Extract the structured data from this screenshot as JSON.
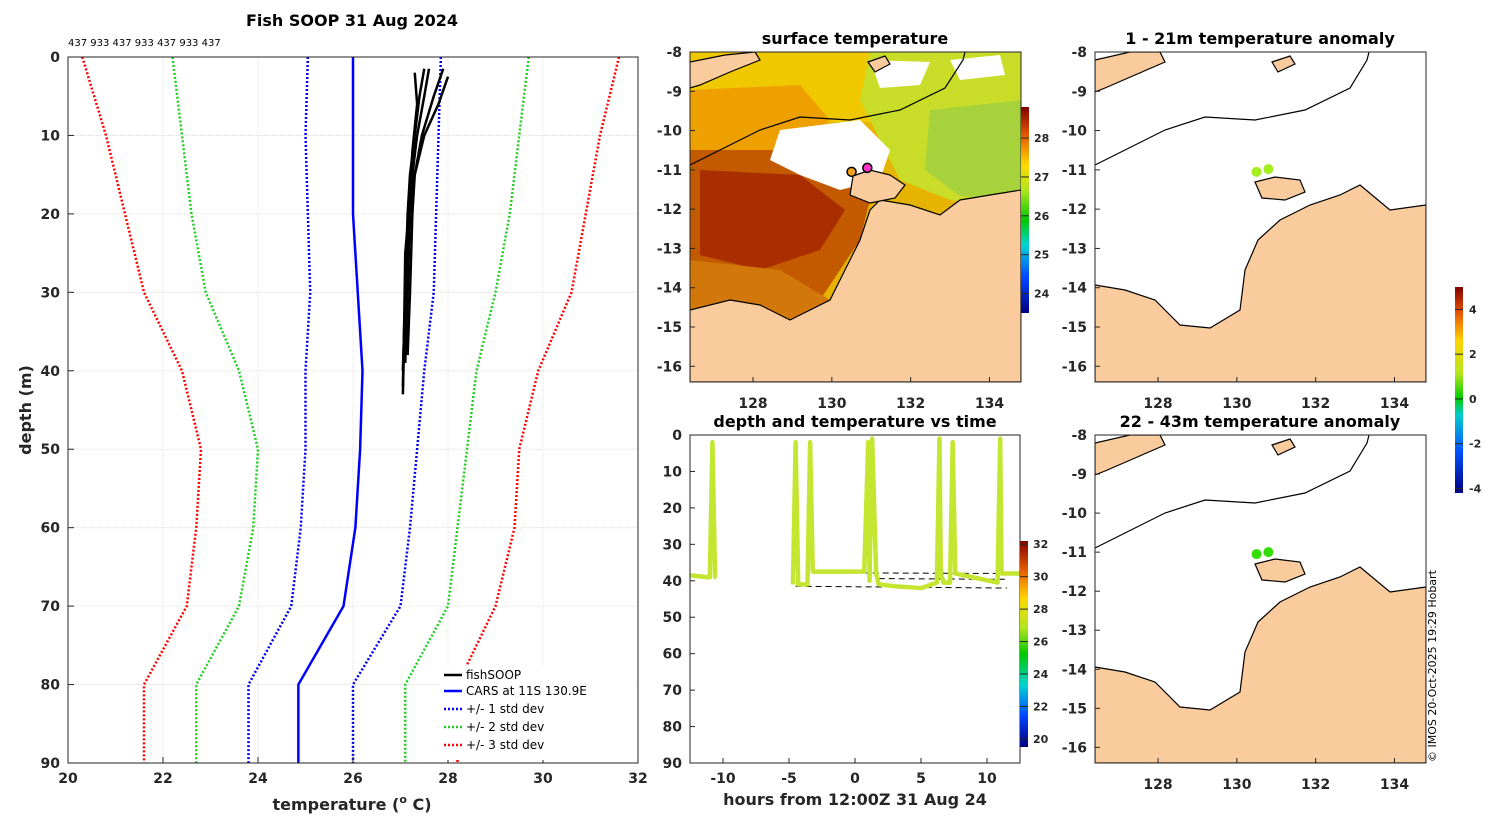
{
  "chart_data": [
    {
      "type": "line",
      "title": "Fish SOOP 31 Aug 2024",
      "id_row": "437 933 437 933 437 933 437",
      "xlabel": "temperature (",
      "xlabel_sup": "o",
      "xlabel_end": " C)",
      "ylabel": "depth (m)",
      "xlim": [
        20,
        32
      ],
      "ylim": [
        0,
        90
      ],
      "xticks": [
        20,
        22,
        24,
        26,
        28,
        30,
        32
      ],
      "yticks": [
        0,
        10,
        20,
        30,
        40,
        50,
        60,
        70,
        80,
        90
      ],
      "depths": [
        0,
        10,
        20,
        30,
        40,
        50,
        60,
        70,
        80,
        90
      ],
      "series": [
        {
          "name": "CARS at 11S 130.9E",
          "color": "#0000ff",
          "style": "solid",
          "values": [
            26.0,
            26.0,
            26.0,
            26.1,
            26.2,
            26.15,
            26.05,
            25.8,
            24.85,
            24.85
          ]
        },
        {
          "name": "+/- 1 std dev",
          "color": "#0000ee",
          "style": "dotted",
          "values": [
            25.05,
            25.0,
            25.05,
            25.1,
            25.0,
            25.0,
            24.9,
            24.7,
            23.8,
            23.8
          ]
        },
        {
          "name": "+/- 1 std dev (upper)",
          "color": "#0000ee",
          "style": "dotted",
          "legend": false,
          "values": [
            27.85,
            27.8,
            27.75,
            27.7,
            27.5,
            27.35,
            27.2,
            27.0,
            26.0,
            26.0
          ]
        },
        {
          "name": "+/- 2 std dev",
          "color": "#22cc22",
          "style": "dotted",
          "values": [
            22.2,
            22.4,
            22.6,
            22.9,
            23.6,
            24.0,
            23.9,
            23.6,
            22.7,
            22.7
          ]
        },
        {
          "name": "+/- 2 std dev (upper)",
          "color": "#22cc22",
          "style": "dotted",
          "legend": false,
          "values": [
            29.7,
            29.5,
            29.3,
            29.0,
            28.6,
            28.4,
            28.2,
            28.0,
            27.1,
            27.1
          ]
        },
        {
          "name": "+/- 3 std dev",
          "color": "#ff0000",
          "style": "dotted",
          "values": [
            20.3,
            20.8,
            21.2,
            21.6,
            22.4,
            22.8,
            22.7,
            22.5,
            21.6,
            21.6
          ]
        },
        {
          "name": "+/- 3 std dev (upper)",
          "color": "#ff0000",
          "style": "dotted",
          "legend": false,
          "values": [
            31.6,
            31.2,
            30.9,
            30.6,
            29.9,
            29.5,
            29.4,
            29.0,
            28.2,
            28.2
          ]
        }
      ],
      "fishsoop": {
        "name": "fishSOOP",
        "color": "#000000",
        "profiles": [
          {
            "depths": [
              1.5,
              5,
              10,
              15,
              20,
              30,
              43
            ],
            "values": [
              27.5,
              27.4,
              27.3,
              27.2,
              27.15,
              27.1,
              27.05
            ]
          },
          {
            "depths": [
              1.5,
              5,
              10,
              15,
              20,
              30,
              39
            ],
            "values": [
              27.9,
              27.7,
              27.45,
              27.3,
              27.2,
              27.15,
              27.1
            ]
          },
          {
            "depths": [
              2.5,
              6,
              10,
              15,
              20,
              30,
              38
            ],
            "values": [
              28.0,
              27.8,
              27.5,
              27.3,
              27.25,
              27.2,
              27.15
            ]
          },
          {
            "depths": [
              1.5,
              5,
              10,
              15,
              22,
              30,
              40
            ],
            "values": [
              27.6,
              27.5,
              27.35,
              27.25,
              27.15,
              27.1,
              27.05
            ]
          },
          {
            "depths": [
              2,
              6,
              12,
              18,
              25,
              33,
              42
            ],
            "values": [
              27.3,
              27.35,
              27.25,
              27.2,
              27.1,
              27.08,
              27.05
            ]
          }
        ]
      }
    },
    {
      "type": "heatmap",
      "title": "surface temperature",
      "xticks": [
        128,
        130,
        132,
        134
      ],
      "yticks": [
        -8,
        -9,
        -10,
        -11,
        -12,
        -13,
        -14,
        -15,
        -16
      ],
      "colorbar": {
        "ticks": [
          24,
          25,
          26,
          27,
          28
        ],
        "range": [
          23.5,
          28.8
        ]
      },
      "markers": [
        {
          "lon": 130.5,
          "lat": -11.05,
          "color": "#f2a21a",
          "label": ""
        },
        {
          "lon": 130.9,
          "lat": -10.95,
          "color": "#ff33cc",
          "label": ""
        }
      ]
    },
    {
      "type": "scatter",
      "title": "1 - 21m temperature anomaly",
      "xticks": [
        128,
        130,
        132,
        134
      ],
      "yticks": [
        -8,
        -9,
        -10,
        -11,
        -12,
        -13,
        -14,
        -15,
        -16
      ],
      "points": [
        {
          "lon": 130.5,
          "lat": -11.05,
          "anomaly": 0.6
        },
        {
          "lon": 130.8,
          "lat": -10.98,
          "anomaly": 0.8
        }
      ]
    },
    {
      "type": "scatter",
      "title": "22 - 43m temperature anomaly",
      "xticks": [
        128,
        130,
        132,
        134
      ],
      "yticks": [
        -8,
        -9,
        -10,
        -11,
        -12,
        -13,
        -14,
        -15,
        -16
      ],
      "points": [
        {
          "lon": 130.5,
          "lat": -11.05,
          "anomaly": 0.3
        },
        {
          "lon": 130.8,
          "lat": -11.0,
          "anomaly": 0.3
        }
      ],
      "shared_colorbar": {
        "ticks": [
          -4,
          -2,
          0,
          2,
          4
        ],
        "range": [
          -4.2,
          5
        ]
      }
    },
    {
      "type": "line",
      "title": "depth and temperature vs time",
      "xlabel": "hours from 12:00Z 31 Aug 24",
      "xlim": [
        -12.5,
        12.5
      ],
      "ylim": [
        0,
        90
      ],
      "xticks": [
        -10,
        -5,
        0,
        5,
        10
      ],
      "yticks": [
        0,
        10,
        20,
        30,
        40,
        50,
        60,
        70,
        80,
        90
      ],
      "colorbar": {
        "ticks": [
          20,
          22,
          24,
          26,
          28,
          30,
          32
        ],
        "range": [
          19.5,
          32.2
        ]
      },
      "trace_color": "#c4e630",
      "segments": [
        {
          "t": [
            -12.5,
            -11.2,
            -11.0,
            -10.8,
            -10.6,
            -10.5
          ],
          "d": [
            38.5,
            39,
            39,
            2,
            39,
            39
          ]
        },
        {
          "t": [
            -4.7,
            -4.5,
            -4.3,
            -4.1,
            -3.6,
            -3.4,
            -3.2,
            0.7,
            1.0,
            1.1,
            1.3,
            1.6,
            1.8,
            3,
            5,
            6.2,
            6.4,
            6.5,
            6.7,
            7.2,
            7.4,
            7.6,
            10.8,
            11.0,
            11.1,
            11.3,
            12.5
          ],
          "d": [
            41,
            2,
            41,
            41,
            41,
            2,
            37.5,
            37.5,
            2,
            40,
            1,
            38,
            41,
            41.5,
            42,
            40.5,
            1,
            38,
            40.5,
            40.5,
            2,
            38,
            40.5,
            1,
            38,
            38,
            38
          ]
        }
      ],
      "dashed_lines": [
        {
          "t": [
            -4.5,
            11.5
          ],
          "d": [
            41.5,
            42
          ]
        },
        {
          "t": [
            -3.2,
            11.5
          ],
          "d": [
            37.8,
            38.0
          ]
        },
        {
          "t": [
            1.8,
            11.5
          ],
          "d": [
            39.4,
            39.6
          ]
        }
      ]
    }
  ],
  "legend": {
    "fishsoop": "fishSOOP",
    "cars": "CARS at 11S 130.9E",
    "std1": "+/- 1 std dev",
    "std2": "+/- 2 std dev",
    "std3": "+/- 3 std dev"
  },
  "credit": "© IMOS 20-Oct-2025 19:29 Hobart",
  "colors": {
    "land": "#facb9c",
    "ocean": "#ffffff",
    "coast": "#000000"
  }
}
